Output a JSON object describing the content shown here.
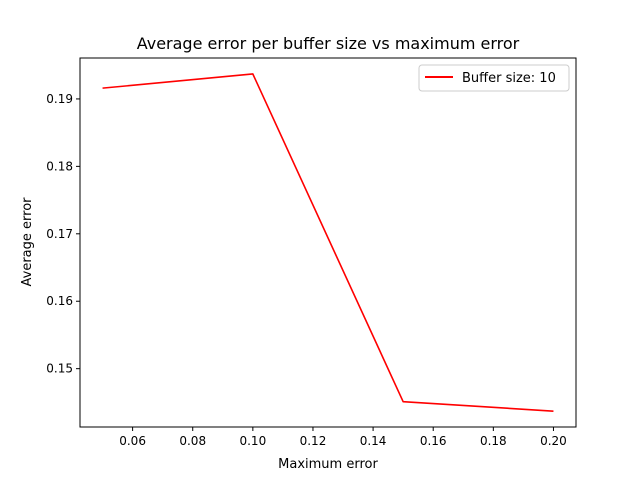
{
  "chart_data": {
    "type": "line",
    "title": "Average error per buffer size vs maximum error",
    "xlabel": "Maximum error",
    "ylabel": "Average error",
    "xlim": [
      0.0425,
      0.2075
    ],
    "ylim": [
      0.14135,
      0.19607
    ],
    "xticks": [
      0.06,
      0.08,
      0.1,
      0.12,
      0.14,
      0.16,
      0.18,
      0.2
    ],
    "xtick_labels": [
      "0.06",
      "0.08",
      "0.10",
      "0.12",
      "0.14",
      "0.16",
      "0.18",
      "0.20"
    ],
    "yticks": [
      0.15,
      0.16,
      0.17,
      0.18,
      0.19
    ],
    "ytick_labels": [
      "0.15",
      "0.16",
      "0.17",
      "0.18",
      "0.19"
    ],
    "grid": false,
    "legend_position": "top-right",
    "series": [
      {
        "name": "Buffer size: 10",
        "color": "#ff0000",
        "x": [
          0.05,
          0.1,
          0.15,
          0.2
        ],
        "y": [
          0.1916,
          0.1937,
          0.1451,
          0.1437
        ]
      }
    ]
  }
}
